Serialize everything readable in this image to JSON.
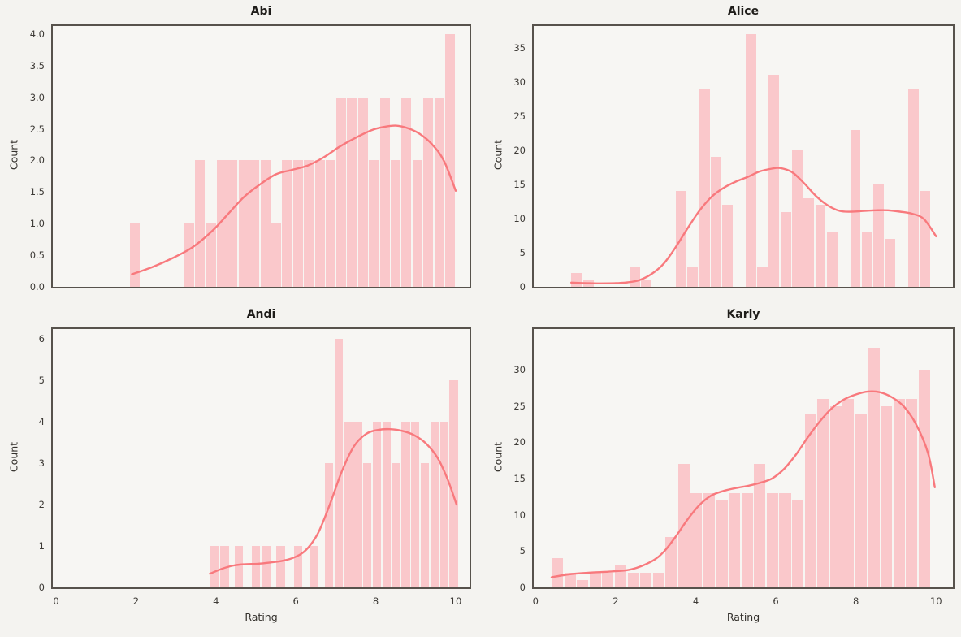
{
  "figure": {
    "background": "#f4f3f0",
    "axes_background": "#f7f6f3",
    "spine_color": "#57524c",
    "bar_color": "#fac8cb",
    "kde_color": "#f8797d",
    "tick_color": "#3d3a36",
    "label_color": "#34312d",
    "title_color": "#1f1d1a"
  },
  "xlabel": "Rating",
  "ylabel": "Count",
  "x_tick_labels": [
    "0",
    "2",
    "4",
    "6",
    "8",
    "10"
  ],
  "x_tick_values": [
    0,
    2,
    4,
    6,
    8,
    10
  ],
  "chart_data": [
    {
      "type": "bar",
      "subtype": "histogram-with-kde",
      "title": "Abi",
      "xlabel": "Rating",
      "ylabel": "Count",
      "xlim": [
        -0.12,
        10.5
      ],
      "ylim": [
        0,
        4.18
      ],
      "grid": false,
      "legend": "none",
      "binwidth": 0.272,
      "y_tick_labels": [
        "0.0",
        "0.5",
        "1.0",
        "1.5",
        "2.0",
        "2.5",
        "3.0",
        "3.5",
        "4.0"
      ],
      "y_tick_values": [
        0,
        0.5,
        1,
        1.5,
        2,
        2.5,
        3,
        3.5,
        4
      ],
      "bars": [
        [
          1.83,
          1
        ],
        [
          3.19,
          1
        ],
        [
          3.47,
          2
        ],
        [
          3.74,
          1
        ],
        [
          4.01,
          2
        ],
        [
          4.28,
          2
        ],
        [
          4.55,
          2
        ],
        [
          4.83,
          2
        ],
        [
          5.1,
          2
        ],
        [
          5.37,
          1
        ],
        [
          5.64,
          2
        ],
        [
          5.91,
          2
        ],
        [
          6.19,
          2
        ],
        [
          6.46,
          2
        ],
        [
          6.73,
          2
        ],
        [
          7.0,
          3
        ],
        [
          7.27,
          3
        ],
        [
          7.55,
          3
        ],
        [
          7.82,
          2
        ],
        [
          8.09,
          3
        ],
        [
          8.36,
          2
        ],
        [
          8.63,
          3
        ],
        [
          8.91,
          2
        ],
        [
          9.18,
          3
        ],
        [
          9.45,
          3
        ],
        [
          9.72,
          4
        ]
      ],
      "kde": [
        [
          1.9,
          0.2
        ],
        [
          2.4,
          0.31
        ],
        [
          2.9,
          0.45
        ],
        [
          3.4,
          0.62
        ],
        [
          3.9,
          0.88
        ],
        [
          4.3,
          1.15
        ],
        [
          4.7,
          1.42
        ],
        [
          5.1,
          1.62
        ],
        [
          5.5,
          1.78
        ],
        [
          5.9,
          1.85
        ],
        [
          6.3,
          1.92
        ],
        [
          6.7,
          2.05
        ],
        [
          7.1,
          2.22
        ],
        [
          7.5,
          2.36
        ],
        [
          7.9,
          2.48
        ],
        [
          8.2,
          2.53
        ],
        [
          8.5,
          2.55
        ],
        [
          8.8,
          2.51
        ],
        [
          9.1,
          2.42
        ],
        [
          9.4,
          2.26
        ],
        [
          9.7,
          2.0
        ],
        [
          10.0,
          1.52
        ]
      ]
    },
    {
      "type": "bar",
      "subtype": "histogram-with-kde",
      "title": "Alice",
      "xlabel": "Rating",
      "ylabel": "Count",
      "xlim": [
        -0.12,
        10.5
      ],
      "ylim": [
        0,
        38.7
      ],
      "grid": false,
      "legend": "none",
      "binwidth": 0.29,
      "y_tick_labels": [
        "0",
        "5",
        "10",
        "15",
        "20",
        "25",
        "30",
        "35"
      ],
      "y_tick_values": [
        0,
        5,
        10,
        15,
        20,
        25,
        30,
        35
      ],
      "bars": [
        [
          0.88,
          2
        ],
        [
          1.17,
          1
        ],
        [
          2.33,
          3
        ],
        [
          2.62,
          1
        ],
        [
          3.49,
          14
        ],
        [
          3.78,
          3
        ],
        [
          4.07,
          29
        ],
        [
          4.36,
          19
        ],
        [
          4.65,
          12
        ],
        [
          5.23,
          37
        ],
        [
          5.52,
          3
        ],
        [
          5.81,
          31
        ],
        [
          6.1,
          11
        ],
        [
          6.39,
          20
        ],
        [
          6.68,
          13
        ],
        [
          6.97,
          12
        ],
        [
          7.26,
          8
        ],
        [
          7.84,
          23
        ],
        [
          8.13,
          8
        ],
        [
          8.42,
          15
        ],
        [
          8.71,
          7
        ],
        [
          9.29,
          29
        ],
        [
          9.58,
          14
        ]
      ],
      "kde": [
        [
          0.89,
          0.62
        ],
        [
          1.2,
          0.55
        ],
        [
          1.6,
          0.5
        ],
        [
          2.0,
          0.53
        ],
        [
          2.3,
          0.65
        ],
        [
          2.6,
          1.0
        ],
        [
          2.9,
          1.9
        ],
        [
          3.2,
          3.4
        ],
        [
          3.5,
          5.8
        ],
        [
          3.8,
          8.6
        ],
        [
          4.1,
          11.2
        ],
        [
          4.4,
          13.2
        ],
        [
          4.7,
          14.5
        ],
        [
          5.0,
          15.4
        ],
        [
          5.3,
          16.1
        ],
        [
          5.6,
          16.9
        ],
        [
          5.9,
          17.3
        ],
        [
          6.1,
          17.4
        ],
        [
          6.4,
          16.8
        ],
        [
          6.7,
          15.2
        ],
        [
          7.0,
          13.3
        ],
        [
          7.3,
          11.9
        ],
        [
          7.6,
          11.1
        ],
        [
          7.9,
          11.0
        ],
        [
          8.2,
          11.1
        ],
        [
          8.5,
          11.2
        ],
        [
          8.8,
          11.2
        ],
        [
          9.1,
          11.0
        ],
        [
          9.4,
          10.7
        ],
        [
          9.7,
          9.9
        ],
        [
          10.0,
          7.4
        ]
      ]
    },
    {
      "type": "bar",
      "subtype": "histogram-with-kde",
      "title": "Andi",
      "xlabel": "Rating",
      "ylabel": "Count",
      "xlim": [
        -0.12,
        10.5
      ],
      "ylim": [
        0,
        6.33
      ],
      "grid": false,
      "legend": "none",
      "binwidth": 0.24,
      "y_tick_labels": [
        "0",
        "1",
        "2",
        "3",
        "4",
        "5",
        "6"
      ],
      "y_tick_values": [
        0,
        1,
        2,
        3,
        4,
        5,
        6
      ],
      "bars": [
        [
          3.84,
          1
        ],
        [
          4.1,
          1
        ],
        [
          4.45,
          1
        ],
        [
          4.88,
          1
        ],
        [
          5.14,
          1
        ],
        [
          5.5,
          1
        ],
        [
          5.93,
          1
        ],
        [
          6.35,
          1
        ],
        [
          6.71,
          3
        ],
        [
          6.95,
          6
        ],
        [
          7.19,
          4
        ],
        [
          7.43,
          4
        ],
        [
          7.67,
          3
        ],
        [
          7.91,
          4
        ],
        [
          8.15,
          4
        ],
        [
          8.39,
          3
        ],
        [
          8.63,
          4
        ],
        [
          8.87,
          4
        ],
        [
          9.11,
          3
        ],
        [
          9.35,
          4
        ],
        [
          9.59,
          4
        ],
        [
          9.83,
          5
        ]
      ],
      "kde": [
        [
          3.85,
          0.33
        ],
        [
          4.15,
          0.45
        ],
        [
          4.45,
          0.53
        ],
        [
          4.75,
          0.56
        ],
        [
          5.05,
          0.57
        ],
        [
          5.35,
          0.6
        ],
        [
          5.65,
          0.64
        ],
        [
          5.95,
          0.72
        ],
        [
          6.25,
          0.9
        ],
        [
          6.55,
          1.3
        ],
        [
          6.85,
          2.0
        ],
        [
          7.15,
          2.8
        ],
        [
          7.45,
          3.4
        ],
        [
          7.75,
          3.7
        ],
        [
          8.05,
          3.8
        ],
        [
          8.35,
          3.82
        ],
        [
          8.65,
          3.78
        ],
        [
          8.95,
          3.68
        ],
        [
          9.25,
          3.48
        ],
        [
          9.55,
          3.12
        ],
        [
          9.8,
          2.6
        ],
        [
          10.02,
          2.0
        ]
      ]
    },
    {
      "type": "bar",
      "subtype": "histogram-with-kde",
      "title": "Karly",
      "xlabel": "Rating",
      "ylabel": "Count",
      "xlim": [
        -0.12,
        10.5
      ],
      "ylim": [
        0,
        36.1
      ],
      "grid": false,
      "legend": "none",
      "binwidth": 0.316,
      "y_tick_labels": [
        "0",
        "5",
        "10",
        "15",
        "20",
        "25",
        "30"
      ],
      "y_tick_values": [
        0,
        5,
        10,
        15,
        20,
        25,
        30
      ],
      "bars": [
        [
          0.385,
          4
        ],
        [
          0.701,
          2
        ],
        [
          1.017,
          1
        ],
        [
          1.333,
          2
        ],
        [
          1.649,
          2
        ],
        [
          1.965,
          3
        ],
        [
          2.281,
          2
        ],
        [
          2.597,
          2
        ],
        [
          2.913,
          2
        ],
        [
          3.229,
          7
        ],
        [
          3.545,
          17
        ],
        [
          3.861,
          13
        ],
        [
          4.177,
          13
        ],
        [
          4.493,
          12
        ],
        [
          4.809,
          13
        ],
        [
          5.125,
          13
        ],
        [
          5.441,
          17
        ],
        [
          5.757,
          13
        ],
        [
          6.073,
          13
        ],
        [
          6.389,
          12
        ],
        [
          6.705,
          24
        ],
        [
          7.021,
          26
        ],
        [
          7.337,
          25
        ],
        [
          7.653,
          26
        ],
        [
          7.969,
          24
        ],
        [
          8.285,
          33
        ],
        [
          8.601,
          25
        ],
        [
          8.917,
          26
        ],
        [
          9.233,
          26
        ],
        [
          9.549,
          30
        ]
      ],
      "kde": [
        [
          0.4,
          1.4
        ],
        [
          0.9,
          1.85
        ],
        [
          1.4,
          2.05
        ],
        [
          1.9,
          2.2
        ],
        [
          2.4,
          2.5
        ],
        [
          2.9,
          3.6
        ],
        [
          3.2,
          4.9
        ],
        [
          3.5,
          7.0
        ],
        [
          3.8,
          9.4
        ],
        [
          4.1,
          11.4
        ],
        [
          4.4,
          12.7
        ],
        [
          4.7,
          13.3
        ],
        [
          5.0,
          13.7
        ],
        [
          5.3,
          14.0
        ],
        [
          5.6,
          14.4
        ],
        [
          5.9,
          15.0
        ],
        [
          6.2,
          16.3
        ],
        [
          6.5,
          18.3
        ],
        [
          6.8,
          20.7
        ],
        [
          7.1,
          22.9
        ],
        [
          7.4,
          24.7
        ],
        [
          7.7,
          25.9
        ],
        [
          8.0,
          26.6
        ],
        [
          8.3,
          27.0
        ],
        [
          8.6,
          26.9
        ],
        [
          8.9,
          26.2
        ],
        [
          9.2,
          24.9
        ],
        [
          9.5,
          22.5
        ],
        [
          9.8,
          18.5
        ],
        [
          9.97,
          13.8
        ]
      ]
    }
  ]
}
